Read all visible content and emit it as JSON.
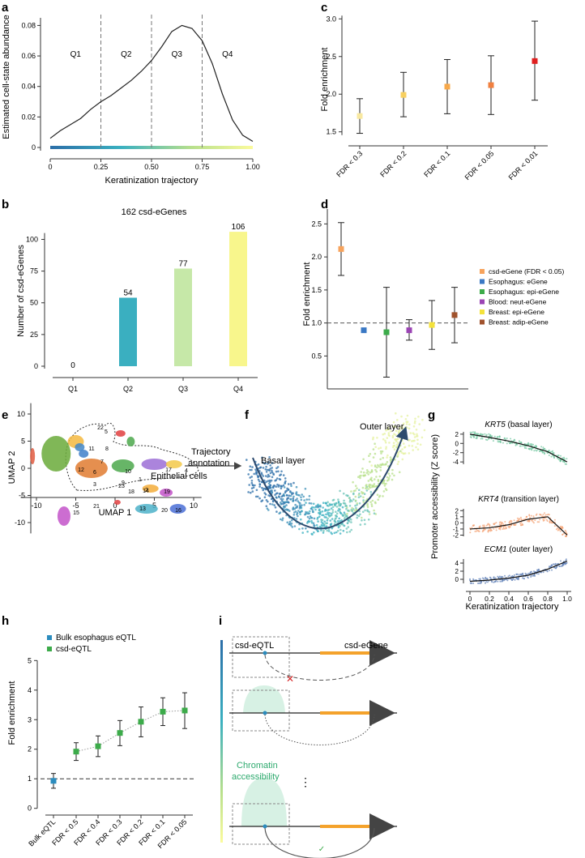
{
  "panels": {
    "a": {
      "letter": "a",
      "ylabel": "Estimated cell-state abundance",
      "xlabel": "Keratinization trajectory",
      "yticks": [
        "0",
        "0.02",
        "0.04",
        "0.06",
        "0.08"
      ],
      "xticks": [
        "0",
        "0.25",
        "0.50",
        "0.75",
        "1.00"
      ],
      "quartiles": [
        "Q1",
        "Q2",
        "Q3",
        "Q4"
      ]
    },
    "b": {
      "letter": "b",
      "title": "162 csd-eGenes",
      "ylabel": "Number of csd-eGenes",
      "yticks": [
        "0",
        "25",
        "50",
        "75",
        "100"
      ]
    },
    "c": {
      "letter": "c",
      "ylabel": "Fold enrichment",
      "yticks": [
        "1.5",
        "2.0",
        "2.5",
        "3.0"
      ]
    },
    "d": {
      "letter": "d",
      "ylabel": "Fold enrichment",
      "yticks": [
        "0.5",
        "1.0",
        "1.5",
        "2.0",
        "2.5"
      ],
      "legend": [
        {
          "label": "csd-eGene (FDR < 0.05)",
          "color": "#f7a35c"
        },
        {
          "label": "Esophagus: eGene",
          "color": "#3a78c4"
        },
        {
          "label": "Esophagus: epi-eGene",
          "color": "#3cab4a"
        },
        {
          "label": "Blood: neut-eGene",
          "color": "#9b44b4"
        },
        {
          "label": "Breast: epi-eGene",
          "color": "#f4e23a"
        },
        {
          "label": "Breast: adip-eGene",
          "color": "#a0522d"
        }
      ]
    },
    "e": {
      "letter": "e",
      "xlabel": "UMAP 1",
      "ylabel": "UMAP 2",
      "xticks": [
        "-10",
        "-5",
        "0",
        "5",
        "10"
      ],
      "yticks": [
        "10",
        "5",
        "0",
        "-5",
        "-10"
      ],
      "annotation": "Epithelial cells",
      "arrow_label_1": "Trajectory",
      "arrow_label_2": "annotation",
      "cluster_labels": [
        "22",
        "5",
        "8",
        "7",
        "11",
        "6",
        "12",
        "3",
        "18",
        "9",
        "10",
        "17",
        "4",
        "14",
        "2",
        "19",
        "23",
        "1",
        "13",
        "20",
        "16",
        "21",
        "15"
      ]
    },
    "f": {
      "letter": "f",
      "basal": "Basal layer",
      "outer": "Outer layer"
    },
    "g": {
      "letter": "g",
      "ylabel": "Promoter accessibility (Z score)",
      "xlabel": "Keratinization trajectory",
      "xticks": [
        "0",
        "0.2",
        "0.4",
        "0.6",
        "0.8",
        "1.0"
      ],
      "subplots": [
        {
          "gene": "KRT5",
          "suffix": " (basal layer)",
          "yticks": [
            "2",
            "0",
            "-2",
            "-4"
          ]
        },
        {
          "gene": "KRT4",
          "suffix": " (transition layer)",
          "yticks": [
            "2",
            "1",
            "0",
            "-1",
            "-2"
          ]
        },
        {
          "gene": "ECM1",
          "suffix": " (outer layer)",
          "yticks": [
            "4",
            "2",
            "0"
          ]
        }
      ]
    },
    "h": {
      "letter": "h",
      "ylabel": "Fold enrichment",
      "yticks": [
        "0",
        "1",
        "2",
        "3",
        "4",
        "5"
      ],
      "legend": [
        {
          "label": "Bulk esophagus eQTL",
          "color": "#2b8cbe"
        },
        {
          "label": "csd-eQTL",
          "color": "#3cab4a"
        }
      ]
    },
    "i": {
      "letter": "i",
      "csd_eqtl": "csd-eQTL",
      "csd_egene": "csd-eGene",
      "chromatin_1": "Chromatin",
      "chromatin_2": "accessibility",
      "dots": "⋮"
    }
  },
  "chart_data": [
    {
      "panel": "a",
      "type": "line",
      "title": "",
      "xlabel": "Keratinization trajectory",
      "ylabel": "Estimated cell-state abundance",
      "x": [
        0,
        0.05,
        0.1,
        0.15,
        0.2,
        0.25,
        0.3,
        0.35,
        0.4,
        0.45,
        0.5,
        0.55,
        0.6,
        0.65,
        0.7,
        0.75,
        0.8,
        0.85,
        0.9,
        0.95,
        1.0
      ],
      "y": [
        0.006,
        0.011,
        0.015,
        0.019,
        0.025,
        0.03,
        0.034,
        0.039,
        0.044,
        0.05,
        0.057,
        0.066,
        0.076,
        0.08,
        0.078,
        0.07,
        0.055,
        0.035,
        0.018,
        0.008,
        0.004
      ],
      "xlim": [
        0,
        1
      ],
      "ylim": [
        0,
        0.085
      ],
      "vlines": [
        0.25,
        0.5,
        0.75
      ]
    },
    {
      "panel": "b",
      "type": "bar",
      "title": "162 csd-eGenes",
      "categories": [
        "Q1",
        "Q2",
        "Q3",
        "Q4"
      ],
      "values": [
        0,
        54,
        77,
        106
      ],
      "colors": [
        "#3a8fb7",
        "#3aafc0",
        "#c6e8a8",
        "#f8f68c"
      ],
      "ylabel": "Number of csd-eGenes",
      "ylim": [
        0,
        115
      ]
    },
    {
      "panel": "c",
      "type": "scatter",
      "categories": [
        "FDR < 0.3",
        "FDR < 0.2",
        "FDR < 0.1",
        "FDR < 0.05",
        "FDR < 0.01"
      ],
      "values": [
        1.71,
        1.99,
        2.1,
        2.12,
        2.44
      ],
      "lower": [
        1.48,
        1.7,
        1.74,
        1.73,
        1.92
      ],
      "upper": [
        1.94,
        2.29,
        2.46,
        2.51,
        2.97
      ],
      "colors": [
        "#f8e8a0",
        "#f8d060",
        "#f7a84a",
        "#f08040",
        "#e02020"
      ],
      "ylabel": "Fold enrichment",
      "ylim": [
        1.4,
        3.1
      ]
    },
    {
      "panel": "d",
      "type": "scatter",
      "categories": [
        "csd-eGene (FDR < 0.05)",
        "Esophagus: eGene",
        "Esophagus: epi-eGene",
        "Blood: neut-eGene",
        "Breast: epi-eGene",
        "Breast: adip-eGene"
      ],
      "values": [
        2.12,
        0.89,
        0.86,
        0.89,
        0.97,
        1.12
      ],
      "lower": [
        1.72,
        0.89,
        0.18,
        0.74,
        0.6,
        0.7
      ],
      "upper": [
        2.52,
        0.89,
        1.54,
        1.05,
        1.34,
        1.54
      ],
      "ylabel": "Fold enrichment",
      "ylim": [
        0.1,
        2.75
      ],
      "hline": 1.0
    },
    {
      "panel": "h",
      "type": "scatter",
      "categories": [
        "Bulk eQTL",
        "FDR < 0.5",
        "FDR < 0.4",
        "FDR < 0.3",
        "FDR < 0.2",
        "FDR < 0.1",
        "FDR < 0.05"
      ],
      "values": [
        0.93,
        1.92,
        2.1,
        2.55,
        2.93,
        3.27,
        3.31
      ],
      "lower": [
        0.68,
        1.62,
        1.75,
        2.12,
        2.42,
        2.8,
        2.7
      ],
      "upper": [
        1.18,
        2.22,
        2.45,
        2.97,
        3.43,
        3.74,
        3.91
      ],
      "ylabel": "Fold enrichment",
      "ylim": [
        -0.2,
        5.2
      ],
      "hline": 1.0
    },
    {
      "panel": "g",
      "type": "scatter",
      "series": [
        {
          "name": "KRT5",
          "x": [
            0,
            0.2,
            0.4,
            0.6,
            0.8,
            1.0
          ],
          "y": [
            2,
            1.3,
            0.5,
            -0.5,
            -1.8,
            -4
          ]
        },
        {
          "name": "KRT4",
          "x": [
            0,
            0.2,
            0.4,
            0.6,
            0.8,
            1.0
          ],
          "y": [
            -1,
            -0.8,
            -0.3,
            0.6,
            1.0,
            -2
          ]
        },
        {
          "name": "ECM1",
          "x": [
            0,
            0.2,
            0.4,
            0.6,
            0.8,
            1.0
          ],
          "y": [
            -0.5,
            -0.2,
            0.3,
            1.0,
            2.5,
            4.5
          ]
        }
      ],
      "xlabel": "Keratinization trajectory",
      "ylabel": "Promoter accessibility (Z score)"
    }
  ]
}
